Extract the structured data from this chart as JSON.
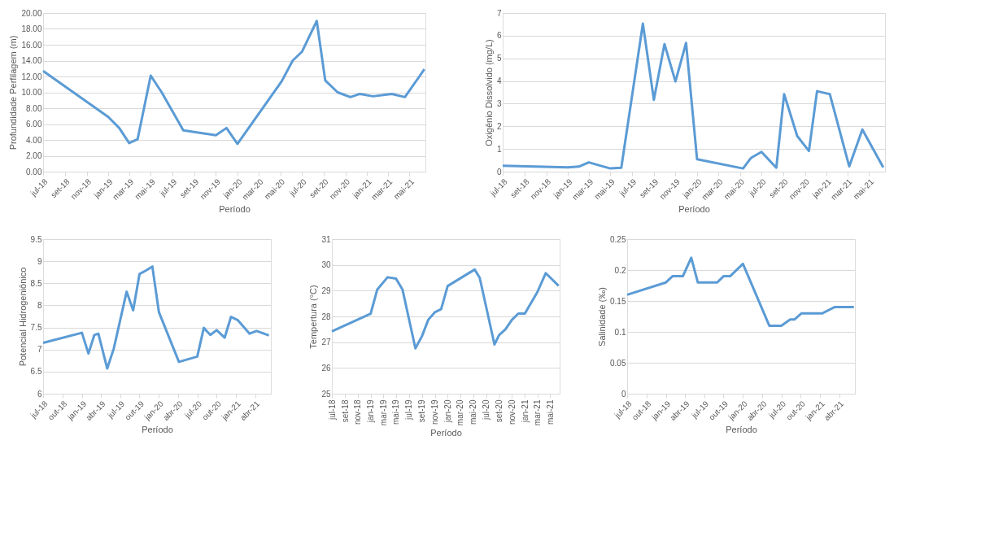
{
  "chart_data": [
    {
      "type": "line",
      "xlabel": "Período",
      "ylabel": "Profundidade Perfilagem (m)",
      "color": "#5b9bd5",
      "grid": "y",
      "x": [
        "2018-07-01",
        "2019-01-01",
        "2019-02-01",
        "2019-03-01",
        "2019-03-25",
        "2019-05-01",
        "2019-06-01",
        "2019-08-01",
        "2019-09-01",
        "2019-10-01",
        "2019-11-01",
        "2019-12-01",
        "2020-01-01",
        "2020-05-05",
        "2020-06-05",
        "2020-07-01",
        "2020-08-12",
        "2020-09-05",
        "2020-10-10",
        "2020-11-15",
        "2020-12-12",
        "2021-01-18",
        "2021-03-12",
        "2021-04-18",
        "2021-06-12"
      ],
      "values": [
        12.7,
        6.9,
        5.5,
        3.6,
        4.1,
        12.1,
        10.0,
        5.2,
        5.0,
        4.8,
        4.6,
        5.5,
        3.5,
        11.4,
        14.0,
        15.1,
        19.0,
        11.5,
        10.0,
        9.4,
        9.8,
        9.5,
        9.8,
        9.4,
        12.9
      ],
      "xlim": [
        "2018-07-01",
        "2021-06-15"
      ],
      "ylim": [
        0,
        20
      ],
      "xticks": [
        {
          "value": "2018-07-01",
          "label": "jul-18"
        },
        {
          "value": "2018-09-01",
          "label": "set-18"
        },
        {
          "value": "2018-11-01",
          "label": "nov-18"
        },
        {
          "value": "2019-01-01",
          "label": "jan-19"
        },
        {
          "value": "2019-03-01",
          "label": "mar-19"
        },
        {
          "value": "2019-05-01",
          "label": "mai-19"
        },
        {
          "value": "2019-07-01",
          "label": "jul-19"
        },
        {
          "value": "2019-09-01",
          "label": "set-19"
        },
        {
          "value": "2019-11-01",
          "label": "nov-19"
        },
        {
          "value": "2020-01-01",
          "label": "jan-20"
        },
        {
          "value": "2020-03-01",
          "label": "mar-20"
        },
        {
          "value": "2020-05-01",
          "label": "mai-20"
        },
        {
          "value": "2020-07-01",
          "label": "jul-20"
        },
        {
          "value": "2020-09-01",
          "label": "set-20"
        },
        {
          "value": "2020-11-01",
          "label": "nov-20"
        },
        {
          "value": "2021-01-01",
          "label": "jan-21"
        },
        {
          "value": "2021-03-01",
          "label": "mar-21"
        },
        {
          "value": "2021-05-01",
          "label": "mai-21"
        }
      ],
      "yticks": [
        {
          "value": 0,
          "label": "0.00"
        },
        {
          "value": 2,
          "label": "2.00"
        },
        {
          "value": 4,
          "label": "4.00"
        },
        {
          "value": 6,
          "label": "6.00"
        },
        {
          "value": 8,
          "label": "8.00"
        },
        {
          "value": 10,
          "label": "10.00"
        },
        {
          "value": 12,
          "label": "12.00"
        },
        {
          "value": 14,
          "label": "14.00"
        },
        {
          "value": 16,
          "label": "16.00"
        },
        {
          "value": 18,
          "label": "18.00"
        },
        {
          "value": 20,
          "label": "20.00"
        }
      ]
    },
    {
      "type": "line",
      "xlabel": "Período",
      "ylabel": "Oxigênio Dissolvido (mg/L)",
      "color": "#5b9bd5",
      "grid": "y",
      "x": [
        "2018-07-01",
        "2019-01-01",
        "2019-02-01",
        "2019-03-01",
        "2019-05-01",
        "2019-06-01",
        "2019-08-01",
        "2019-09-01",
        "2019-10-01",
        "2019-11-01",
        "2019-12-01",
        "2020-01-01",
        "2020-05-10",
        "2020-06-01",
        "2020-07-01",
        "2020-08-12",
        "2020-09-03",
        "2020-10-10",
        "2020-11-12",
        "2020-12-05",
        "2021-01-10",
        "2021-03-06",
        "2021-04-12",
        "2021-06-10"
      ],
      "values": [
        0.26,
        0.19,
        0.22,
        0.41,
        0.14,
        0.17,
        6.53,
        3.17,
        5.63,
        3.98,
        5.68,
        0.55,
        0.14,
        0.6,
        0.87,
        0.17,
        3.42,
        1.57,
        0.91,
        3.55,
        3.42,
        0.23,
        1.86,
        0.19
      ],
      "xlim": [
        "2018-07-01",
        "2021-06-15"
      ],
      "ylim": [
        0,
        7
      ],
      "xticks": [
        {
          "value": "2018-07-01",
          "label": "jul-18"
        },
        {
          "value": "2018-09-01",
          "label": "set-18"
        },
        {
          "value": "2018-11-01",
          "label": "nov-18"
        },
        {
          "value": "2019-01-01",
          "label": "jan-19"
        },
        {
          "value": "2019-03-01",
          "label": "mar-19"
        },
        {
          "value": "2019-05-01",
          "label": "mai-19"
        },
        {
          "value": "2019-07-01",
          "label": "jul-19"
        },
        {
          "value": "2019-09-01",
          "label": "set-19"
        },
        {
          "value": "2019-11-01",
          "label": "nov-19"
        },
        {
          "value": "2020-01-01",
          "label": "jan-20"
        },
        {
          "value": "2020-03-01",
          "label": "mar-20"
        },
        {
          "value": "2020-05-01",
          "label": "mai-20"
        },
        {
          "value": "2020-07-01",
          "label": "jul-20"
        },
        {
          "value": "2020-09-01",
          "label": "set-20"
        },
        {
          "value": "2020-11-01",
          "label": "nov-20"
        },
        {
          "value": "2021-01-01",
          "label": "jan-21"
        },
        {
          "value": "2021-03-01",
          "label": "mar-21"
        },
        {
          "value": "2021-05-01",
          "label": "mai-21"
        }
      ],
      "yticks": [
        0,
        1,
        2,
        3,
        4,
        5,
        6,
        7
      ]
    },
    {
      "type": "line",
      "xlabel": "Período",
      "ylabel": "Potencial Hidrogeniônico",
      "color": "#5b9bd5",
      "grid": "y",
      "x": [
        "2018-07-01",
        "2019-01-01",
        "2019-02-01",
        "2019-03-01",
        "2019-03-20",
        "2019-05-01",
        "2019-06-01",
        "2019-08-01",
        "2019-09-01",
        "2019-10-01",
        "2019-11-01",
        "2019-12-01",
        "2020-01-01",
        "2020-04-05",
        "2020-07-01",
        "2020-08-01",
        "2020-09-01",
        "2020-10-01",
        "2020-11-08",
        "2020-12-08",
        "2021-01-08",
        "2021-03-06",
        "2021-04-08",
        "2021-06-06"
      ],
      "values": [
        7.15,
        7.38,
        6.91,
        7.33,
        7.36,
        6.57,
        7.02,
        8.31,
        7.89,
        8.71,
        8.79,
        8.88,
        7.85,
        6.72,
        6.84,
        7.49,
        7.33,
        7.44,
        7.27,
        7.74,
        7.67,
        7.36,
        7.42,
        7.32
      ],
      "xlim": [
        "2018-07-01",
        "2021-06-15"
      ],
      "ylim": [
        6,
        9.5
      ],
      "xticks": [
        {
          "value": "2018-07-01",
          "label": "jul-18"
        },
        {
          "value": "2018-10-01",
          "label": "out-18"
        },
        {
          "value": "2019-01-01",
          "label": "jan-19"
        },
        {
          "value": "2019-04-01",
          "label": "abr-19"
        },
        {
          "value": "2019-07-01",
          "label": "jul-19"
        },
        {
          "value": "2019-10-01",
          "label": "out-19"
        },
        {
          "value": "2020-01-01",
          "label": "jan-20"
        },
        {
          "value": "2020-04-01",
          "label": "abr-20"
        },
        {
          "value": "2020-07-01",
          "label": "jul-20"
        },
        {
          "value": "2020-10-01",
          "label": "out-20"
        },
        {
          "value": "2021-01-01",
          "label": "jan-21"
        },
        {
          "value": "2021-04-01",
          "label": "abr-21"
        }
      ],
      "yticks": [
        6,
        6.5,
        7,
        7.5,
        8,
        8.5,
        9,
        9.5
      ]
    },
    {
      "type": "line",
      "xlabel": "Período",
      "ylabel": "Tempertura (°C)",
      "color": "#5b9bd5",
      "grid": "y",
      "x": [
        "2018-07-01",
        "2019-01-01",
        "2019-02-01",
        "2019-03-22",
        "2019-05-01",
        "2019-06-01",
        "2019-08-01",
        "2019-09-01",
        "2019-10-01",
        "2019-11-01",
        "2019-12-01",
        "2020-01-01",
        "2020-05-08",
        "2020-06-01",
        "2020-08-10",
        "2020-09-01",
        "2020-10-01",
        "2020-11-01",
        "2020-12-01",
        "2021-01-01",
        "2021-03-01",
        "2021-04-10",
        "2021-06-10"
      ],
      "values": [
        27.42,
        28.11,
        29.04,
        29.52,
        29.47,
        29.04,
        26.76,
        27.23,
        27.87,
        28.16,
        28.28,
        29.18,
        29.82,
        29.5,
        26.91,
        27.28,
        27.5,
        27.87,
        28.11,
        28.11,
        28.94,
        29.68,
        29.19
      ],
      "xlim": [
        "2018-07-01",
        "2021-06-15"
      ],
      "ylim": [
        25,
        31
      ],
      "xticks": [
        {
          "value": "2018-07-01",
          "label": "jul-18"
        },
        {
          "value": "2018-09-01",
          "label": "set-18"
        },
        {
          "value": "2018-11-01",
          "label": "nov-18"
        },
        {
          "value": "2019-01-01",
          "label": "jan-19"
        },
        {
          "value": "2019-03-01",
          "label": "mar-19"
        },
        {
          "value": "2019-05-01",
          "label": "mai-19"
        },
        {
          "value": "2019-07-01",
          "label": "jul-19"
        },
        {
          "value": "2019-09-01",
          "label": "set-19"
        },
        {
          "value": "2019-11-01",
          "label": "nov-19"
        },
        {
          "value": "2020-01-01",
          "label": "jan-20"
        },
        {
          "value": "2020-03-01",
          "label": "mar-20"
        },
        {
          "value": "2020-05-01",
          "label": "mai-20"
        },
        {
          "value": "2020-07-01",
          "label": "jul-20"
        },
        {
          "value": "2020-09-01",
          "label": "set-20"
        },
        {
          "value": "2020-11-01",
          "label": "nov-20"
        },
        {
          "value": "2021-01-01",
          "label": "jan-21"
        },
        {
          "value": "2021-03-01",
          "label": "mar-21"
        },
        {
          "value": "2021-05-01",
          "label": "mai-21"
        }
      ],
      "yticks": [
        25,
        26,
        27,
        28,
        29,
        30,
        31
      ]
    },
    {
      "type": "line",
      "xlabel": "Período",
      "ylabel": "Salinidade (‰)",
      "color": "#5b9bd5",
      "grid": "y",
      "x": [
        "2018-07-01",
        "2019-01-01",
        "2019-02-01",
        "2019-03-22",
        "2019-05-01",
        "2019-06-01",
        "2019-09-01",
        "2019-10-01",
        "2019-11-01",
        "2020-01-01",
        "2020-05-05",
        "2020-07-01",
        "2020-08-12",
        "2020-09-01",
        "2020-10-05",
        "2021-01-12",
        "2021-03-10",
        "2021-06-10"
      ],
      "values": [
        0.16,
        0.18,
        0.19,
        0.19,
        0.22,
        0.18,
        0.18,
        0.19,
        0.19,
        0.21,
        0.11,
        0.11,
        0.12,
        0.12,
        0.13,
        0.13,
        0.14,
        0.14
      ],
      "xlim": [
        "2018-07-01",
        "2021-06-15"
      ],
      "ylim": [
        0,
        0.25
      ],
      "xticks": [
        {
          "value": "2018-07-01",
          "label": "jul-18"
        },
        {
          "value": "2018-10-01",
          "label": "out-18"
        },
        {
          "value": "2019-01-01",
          "label": "jan-19"
        },
        {
          "value": "2019-04-01",
          "label": "abr-19"
        },
        {
          "value": "2019-07-01",
          "label": "jul-19"
        },
        {
          "value": "2019-10-01",
          "label": "out-19"
        },
        {
          "value": "2020-01-01",
          "label": "jan-20"
        },
        {
          "value": "2020-04-01",
          "label": "abr-20"
        },
        {
          "value": "2020-07-01",
          "label": "jul-20"
        },
        {
          "value": "2020-10-01",
          "label": "out-20"
        },
        {
          "value": "2021-01-01",
          "label": "jan-21"
        },
        {
          "value": "2021-04-01",
          "label": "abr-21"
        }
      ],
      "yticks": [
        0,
        0.05,
        0.1,
        0.15,
        0.2,
        0.25
      ]
    }
  ]
}
